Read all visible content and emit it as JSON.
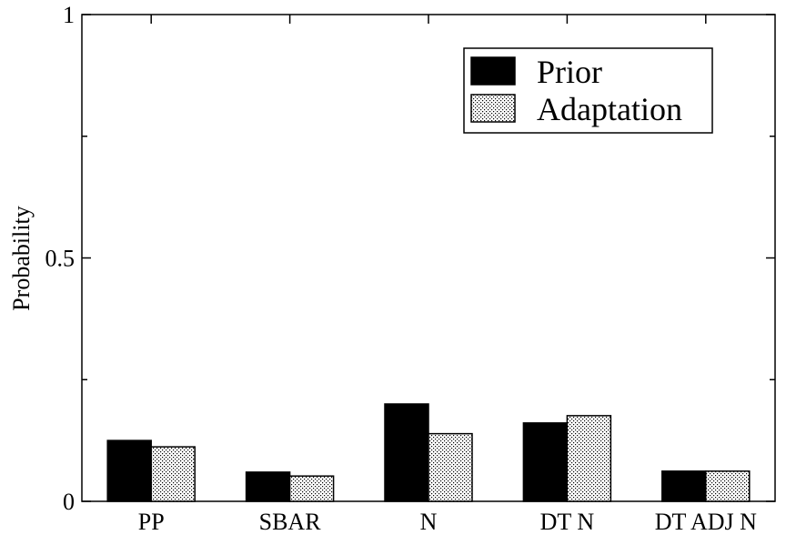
{
  "chart_data": {
    "type": "bar",
    "title": "",
    "xlabel": "",
    "ylabel": "Probability",
    "ylim": [
      0,
      1
    ],
    "y_ticks": [
      {
        "value": 0,
        "label": "0"
      },
      {
        "value": 0.5,
        "label": "0.5"
      },
      {
        "value": 1,
        "label": "1"
      }
    ],
    "y_minor_ticks": [
      0.25,
      0.75
    ],
    "categories": [
      "PP",
      "SBAR",
      "N",
      "DT N",
      "DT ADJ N"
    ],
    "series": [
      {
        "name": "Prior",
        "values": [
          0.125,
          0.06,
          0.2,
          0.161,
          0.062
        ],
        "color": "#000000",
        "pattern": "solid"
      },
      {
        "name": "Adaptation",
        "values": [
          0.112,
          0.052,
          0.139,
          0.176,
          0.062
        ],
        "color": "#ffffff",
        "pattern": "dotted"
      }
    ],
    "legend_position": "top-right",
    "grid": false
  }
}
